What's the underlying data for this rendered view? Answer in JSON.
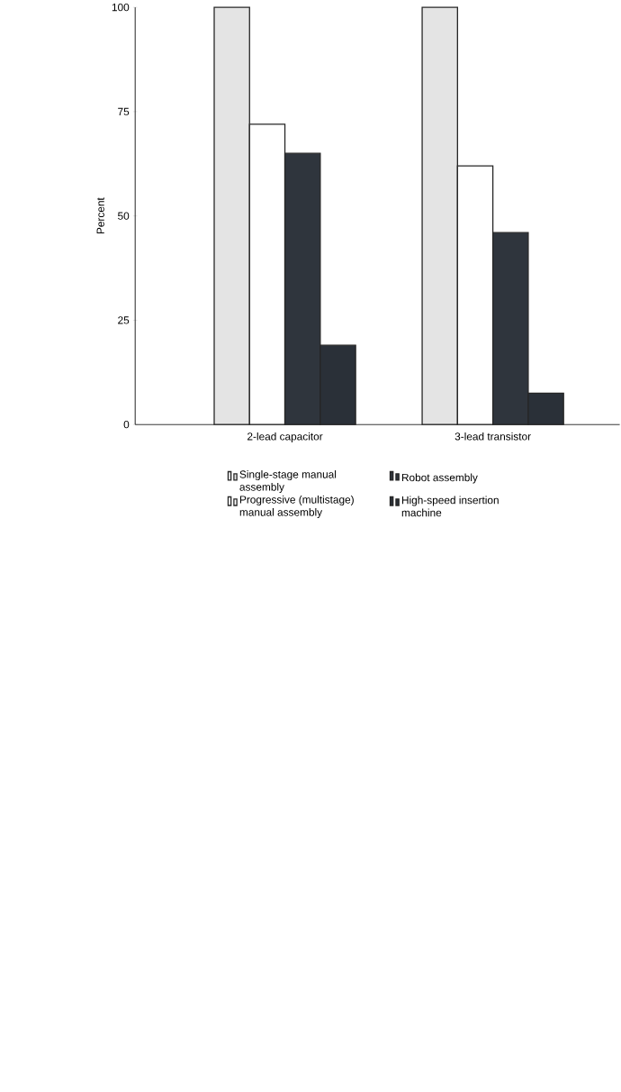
{
  "chart_data": {
    "type": "bar",
    "ylabel": "Percent",
    "categories": [
      "2-lead capacitor",
      "3-lead transistor"
    ],
    "series": [
      {
        "name": "Single-stage manual assembly",
        "color": "#e4e4e4",
        "values": [
          100,
          100
        ]
      },
      {
        "name": "Progressive (multistage) manual assembly",
        "color": "#ffffff",
        "values": [
          72,
          62
        ]
      },
      {
        "name": "Robot assembly",
        "color": "#2f353d",
        "values": [
          65,
          46
        ]
      },
      {
        "name": "High-speed insertion machine",
        "color": "#2a3038",
        "values": [
          19,
          7.5
        ]
      }
    ],
    "ylim": [
      0,
      100
    ],
    "yticks": [
      0,
      25,
      50,
      75,
      100
    ],
    "legend": "bottom"
  }
}
